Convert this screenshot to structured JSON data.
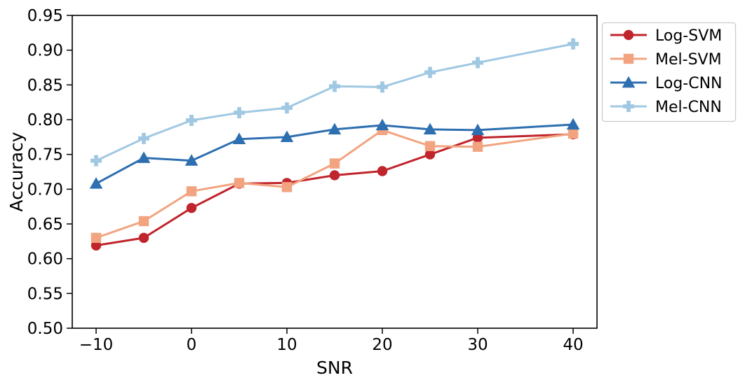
{
  "figure": {
    "background": "#ffffff",
    "frame_color": "#000000"
  },
  "chart_data": {
    "type": "line",
    "title": "",
    "xlabel": "SNR",
    "ylabel": "Accuracy",
    "x": [
      -10,
      -5,
      0,
      5,
      10,
      15,
      20,
      25,
      30,
      40
    ],
    "series": [
      {
        "name": "Log-SVM",
        "marker": "circle",
        "color": "#c0242c",
        "values": [
          0.619,
          0.63,
          0.673,
          0.708,
          0.709,
          0.72,
          0.726,
          0.75,
          0.774,
          0.779
        ]
      },
      {
        "name": "Mel-SVM",
        "marker": "square",
        "color": "#f2a480",
        "values": [
          0.63,
          0.654,
          0.697,
          0.709,
          0.703,
          0.737,
          0.785,
          0.762,
          0.761,
          0.78
        ]
      },
      {
        "name": "Log-CNN",
        "marker": "triangle-up",
        "color": "#2d6fb0",
        "values": [
          0.708,
          0.745,
          0.741,
          0.772,
          0.775,
          0.786,
          0.792,
          0.786,
          0.785,
          0.793
        ]
      },
      {
        "name": "Mel-CNN",
        "marker": "plus",
        "color": "#a0c8e2",
        "values": [
          0.741,
          0.773,
          0.799,
          0.81,
          0.817,
          0.848,
          0.847,
          0.868,
          0.882,
          0.909
        ]
      }
    ],
    "xlim": [
      -12.5,
      42.5
    ],
    "ylim": [
      0.5,
      0.95
    ],
    "xticks": {
      "values": [
        -10,
        0,
        10,
        20,
        30,
        40
      ],
      "labels": [
        "−10",
        "0",
        "10",
        "20",
        "30",
        "40"
      ]
    },
    "yticks": {
      "values": [
        0.5,
        0.55,
        0.6,
        0.65,
        0.7,
        0.75,
        0.8,
        0.85,
        0.9,
        0.95
      ],
      "labels": [
        "0.50",
        "0.55",
        "0.60",
        "0.65",
        "0.70",
        "0.75",
        "0.80",
        "0.85",
        "0.90",
        "0.95"
      ]
    },
    "grid": false,
    "legend": {
      "position": "upper-right-outside",
      "border_color": "#cccccc",
      "background": "#ffffff",
      "items": [
        "Log-SVM",
        "Mel-SVM",
        "Log-CNN",
        "Mel-CNN"
      ]
    }
  }
}
